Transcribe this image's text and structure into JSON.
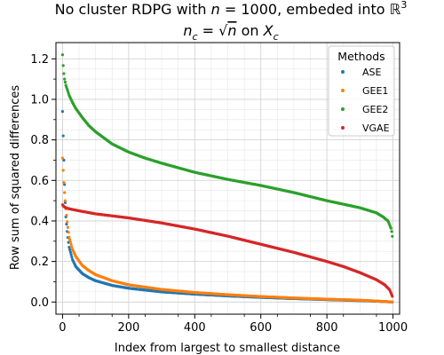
{
  "chart_data": {
    "type": "scatter",
    "title_line1": "No cluster RDPG with n = 1000, embeded into ℝ³",
    "title_line2": "n_c = √n on X_c",
    "xlabel": "Index from largest to smallest distance",
    "ylabel": "Row sum of squared differences",
    "xlim": [
      -20,
      1020
    ],
    "ylim": [
      -0.06,
      1.28
    ],
    "x_ticks": [
      0,
      200,
      400,
      600,
      800,
      1000
    ],
    "y_ticks": [
      0.0,
      0.2,
      0.4,
      0.6,
      0.8,
      1.0,
      1.2
    ],
    "x_tick_labels": [
      "0",
      "200",
      "400",
      "600",
      "800",
      "1000"
    ],
    "y_tick_labels": [
      "0.0",
      "0.2",
      "0.4",
      "0.6",
      "0.8",
      "1.0",
      "1.2"
    ],
    "grid": true,
    "legend": {
      "title": "Methods",
      "placement": "top-right"
    },
    "series": [
      {
        "name": "ASE",
        "color": "#1f77b4",
        "points": [
          [
            0,
            0.94
          ],
          [
            2,
            0.82
          ],
          [
            4,
            0.7
          ],
          [
            6,
            0.58
          ],
          [
            8,
            0.49
          ],
          [
            10,
            0.42
          ],
          [
            15,
            0.33
          ],
          [
            20,
            0.27
          ],
          [
            30,
            0.21
          ],
          [
            40,
            0.175
          ],
          [
            60,
            0.14
          ],
          [
            80,
            0.12
          ],
          [
            100,
            0.105
          ],
          [
            150,
            0.082
          ],
          [
            200,
            0.068
          ],
          [
            300,
            0.05
          ],
          [
            400,
            0.039
          ],
          [
            500,
            0.03
          ],
          [
            600,
            0.023
          ],
          [
            700,
            0.017
          ],
          [
            800,
            0.012
          ],
          [
            900,
            0.007
          ],
          [
            950,
            0.004
          ],
          [
            1000,
            0.0
          ]
        ]
      },
      {
        "name": "GEE1",
        "color": "#ff7f0e",
        "points": [
          [
            0,
            0.71
          ],
          [
            2,
            0.65
          ],
          [
            4,
            0.59
          ],
          [
            6,
            0.54
          ],
          [
            8,
            0.5
          ],
          [
            10,
            0.46
          ],
          [
            15,
            0.38
          ],
          [
            20,
            0.32
          ],
          [
            30,
            0.26
          ],
          [
            40,
            0.225
          ],
          [
            60,
            0.18
          ],
          [
            80,
            0.155
          ],
          [
            100,
            0.135
          ],
          [
            150,
            0.105
          ],
          [
            200,
            0.085
          ],
          [
            300,
            0.062
          ],
          [
            400,
            0.047
          ],
          [
            500,
            0.036
          ],
          [
            600,
            0.027
          ],
          [
            700,
            0.02
          ],
          [
            800,
            0.014
          ],
          [
            900,
            0.009
          ],
          [
            950,
            0.005
          ],
          [
            1000,
            0.0
          ]
        ]
      },
      {
        "name": "GEE2",
        "color": "#2ca02c",
        "points": [
          [
            0,
            1.22
          ],
          [
            3,
            1.14
          ],
          [
            6,
            1.1
          ],
          [
            10,
            1.07
          ],
          [
            20,
            1.02
          ],
          [
            30,
            0.985
          ],
          [
            40,
            0.955
          ],
          [
            60,
            0.91
          ],
          [
            80,
            0.87
          ],
          [
            100,
            0.84
          ],
          [
            150,
            0.78
          ],
          [
            200,
            0.74
          ],
          [
            250,
            0.71
          ],
          [
            300,
            0.685
          ],
          [
            400,
            0.64
          ],
          [
            500,
            0.605
          ],
          [
            600,
            0.575
          ],
          [
            700,
            0.54
          ],
          [
            800,
            0.5
          ],
          [
            900,
            0.465
          ],
          [
            950,
            0.44
          ],
          [
            970,
            0.42
          ],
          [
            985,
            0.4
          ],
          [
            995,
            0.36
          ],
          [
            1000,
            0.3
          ]
        ]
      },
      {
        "name": "VGAE",
        "color": "#d62728",
        "points": [
          [
            0,
            0.48
          ],
          [
            2,
            0.475
          ],
          [
            5,
            0.47
          ],
          [
            10,
            0.465
          ],
          [
            20,
            0.46
          ],
          [
            50,
            0.45
          ],
          [
            100,
            0.435
          ],
          [
            200,
            0.415
          ],
          [
            300,
            0.39
          ],
          [
            400,
            0.36
          ],
          [
            500,
            0.325
          ],
          [
            600,
            0.285
          ],
          [
            700,
            0.245
          ],
          [
            800,
            0.2
          ],
          [
            850,
            0.175
          ],
          [
            900,
            0.145
          ],
          [
            950,
            0.11
          ],
          [
            975,
            0.085
          ],
          [
            990,
            0.06
          ],
          [
            1000,
            0.02
          ]
        ]
      }
    ]
  }
}
